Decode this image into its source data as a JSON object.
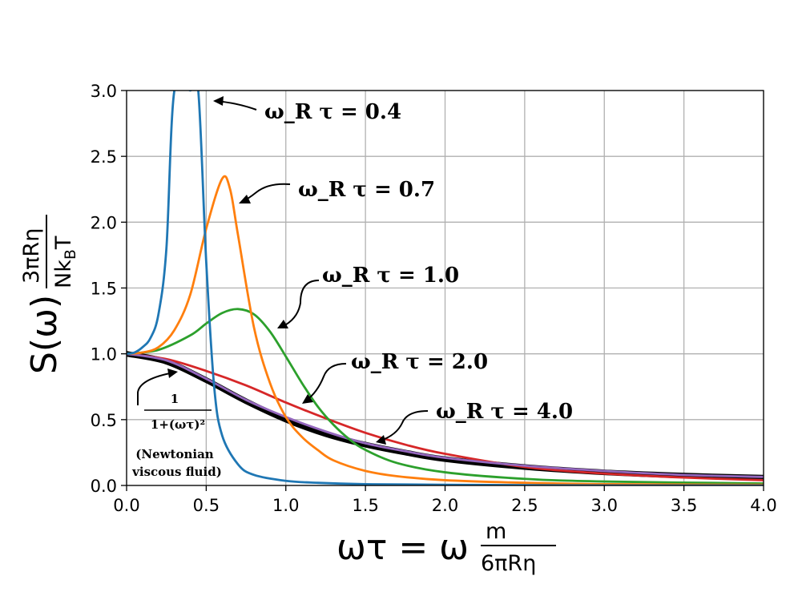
{
  "chart_data": {
    "type": "line",
    "xlabel": "ωτ = ω m/(6πRη)",
    "ylabel": "S(ω) 3πRη/(N k_B T)",
    "xlim": [
      0,
      4.0
    ],
    "ylim": [
      0,
      3.0
    ],
    "x_ticks": [
      "0.0",
      "0.5",
      "1.0",
      "1.5",
      "2.0",
      "2.5",
      "3.0",
      "3.5",
      "4.0"
    ],
    "y_ticks": [
      "0.0",
      "0.5",
      "1.0",
      "1.5",
      "2.0",
      "2.5",
      "3.0"
    ],
    "grid": true,
    "series": [
      {
        "name": "ω_R τ = 0.4",
        "color": "#1f77b4",
        "x": [
          0,
          0.05,
          0.1,
          0.15,
          0.2,
          0.25,
          0.3,
          0.4,
          0.45,
          0.5,
          0.55,
          0.6,
          0.7,
          0.8,
          1.0,
          1.2,
          1.5,
          2.0,
          3.0,
          4.0
        ],
        "y": [
          1.0,
          1.01,
          1.05,
          1.12,
          1.3,
          1.8,
          3.0,
          3.0,
          3.0,
          1.7,
          0.75,
          0.38,
          0.16,
          0.08,
          0.035,
          0.02,
          0.01,
          0.005,
          0.0,
          0.0
        ]
      },
      {
        "name": "ω_R τ = 0.7",
        "color": "#ff7f0e",
        "x": [
          0,
          0.1,
          0.2,
          0.3,
          0.4,
          0.5,
          0.6,
          0.65,
          0.7,
          0.8,
          0.9,
          1.0,
          1.1,
          1.2,
          1.3,
          1.5,
          1.7,
          2.0,
          2.5,
          3.0,
          4.0
        ],
        "y": [
          1.0,
          1.01,
          1.05,
          1.18,
          1.45,
          1.95,
          2.33,
          2.25,
          1.9,
          1.2,
          0.78,
          0.52,
          0.37,
          0.27,
          0.19,
          0.11,
          0.07,
          0.04,
          0.02,
          0.01,
          0.005
        ]
      },
      {
        "name": "ω_R τ = 1.0",
        "color": "#2ca02c",
        "x": [
          0,
          0.2,
          0.4,
          0.5,
          0.6,
          0.7,
          0.8,
          0.9,
          1.0,
          1.1,
          1.2,
          1.3,
          1.4,
          1.5,
          1.7,
          2.0,
          2.5,
          3.0,
          4.0
        ],
        "y": [
          1.0,
          1.03,
          1.14,
          1.23,
          1.31,
          1.34,
          1.3,
          1.17,
          0.98,
          0.78,
          0.6,
          0.46,
          0.35,
          0.27,
          0.17,
          0.1,
          0.05,
          0.03,
          0.015
        ]
      },
      {
        "name": "ω_R τ = 2.0",
        "color": "#d62728",
        "x": [
          0,
          0.25,
          0.5,
          0.75,
          1.0,
          1.25,
          1.5,
          1.75,
          2.0,
          2.5,
          3.0,
          3.5,
          4.0
        ],
        "y": [
          1.0,
          0.96,
          0.87,
          0.76,
          0.63,
          0.51,
          0.4,
          0.31,
          0.24,
          0.14,
          0.09,
          0.06,
          0.04
        ]
      },
      {
        "name": "ω_R τ = 4.0",
        "color": "#9467bd",
        "x": [
          0,
          0.25,
          0.5,
          0.75,
          1.0,
          1.25,
          1.5,
          1.75,
          2.0,
          2.5,
          3.0,
          3.5,
          4.0
        ],
        "y": [
          1.0,
          0.95,
          0.81,
          0.65,
          0.52,
          0.41,
          0.32,
          0.26,
          0.21,
          0.15,
          0.11,
          0.08,
          0.065
        ]
      },
      {
        "name": "1/(1+(ωτ)^2) (Newtonian viscous fluid)",
        "color": "#000000",
        "x": [
          0,
          0.25,
          0.5,
          0.75,
          1.0,
          1.25,
          1.5,
          1.75,
          2.0,
          2.5,
          3.0,
          3.5,
          4.0
        ],
        "y": [
          1.0,
          0.94,
          0.8,
          0.64,
          0.5,
          0.39,
          0.31,
          0.25,
          0.2,
          0.14,
          0.1,
          0.075,
          0.059
        ]
      }
    ],
    "annotations": {
      "a04": "ω_R τ = 0.4",
      "a07": "ω_R τ = 0.7",
      "a10": "ω_R τ = 1.0",
      "a20": "ω_R τ = 2.0",
      "a40": "ω_R τ = 4.0",
      "newton_num": "1",
      "newton_den": "1+(ωτ)²",
      "newton_note_1": "(Newtonian",
      "newton_note_2": "viscous fluid)"
    }
  }
}
